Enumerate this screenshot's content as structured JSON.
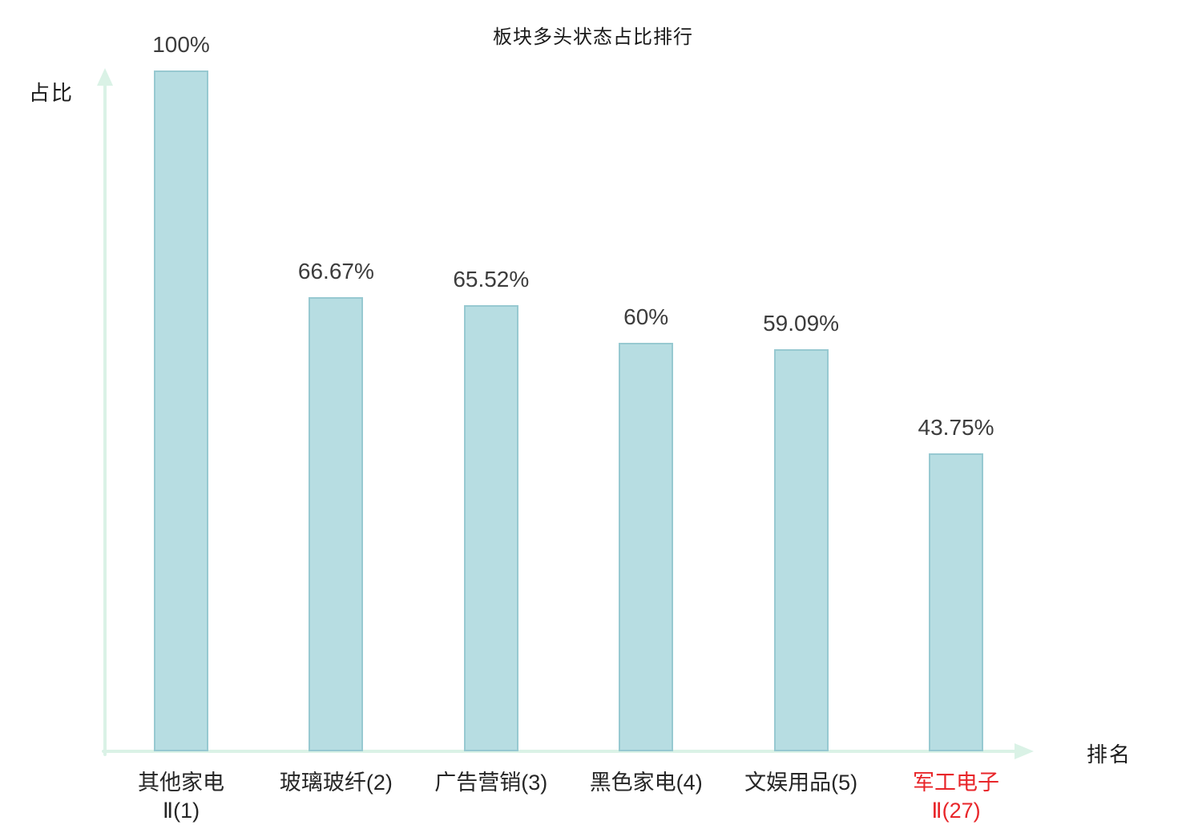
{
  "chart_data": {
    "type": "bar",
    "title": "板块多头状态占比排行",
    "xlabel": "排名",
    "ylabel": "占比",
    "ylim": [
      0,
      100
    ],
    "grid": false,
    "legend_position": "none",
    "categories": [
      "其他家电Ⅱ(1)",
      "玻璃玻纤(2)",
      "广告营销(3)",
      "黑色家电(4)",
      "文娱用品(5)",
      "军工电子Ⅱ(27)"
    ],
    "values": [
      100,
      66.67,
      65.52,
      60,
      59.09,
      43.75
    ],
    "bars": [
      {
        "value": 100,
        "value_label": "100%",
        "label_lines": [
          "其他家电",
          "Ⅱ(1)"
        ],
        "label_color": "#262626"
      },
      {
        "value": 66.67,
        "value_label": "66.67%",
        "label_lines": [
          "玻璃玻纤(2)"
        ],
        "label_color": "#262626"
      },
      {
        "value": 65.52,
        "value_label": "65.52%",
        "label_lines": [
          "广告营销(3)"
        ],
        "label_color": "#262626"
      },
      {
        "value": 60,
        "value_label": "60%",
        "label_lines": [
          "黑色家电(4)"
        ],
        "label_color": "#262626"
      },
      {
        "value": 59.09,
        "value_label": "59.09%",
        "label_lines": [
          "文娱用品(5)"
        ],
        "label_color": "#262626"
      },
      {
        "value": 43.75,
        "value_label": "43.75%",
        "label_lines": [
          "军工电子",
          "Ⅱ(27)"
        ],
        "label_color": "#e8262a"
      }
    ],
    "colors": {
      "bar_fill": "#b7dde2",
      "bar_border": "#97c9d1",
      "axis": "#daf2e6",
      "text": "#262626",
      "highlight": "#e8262a"
    }
  }
}
